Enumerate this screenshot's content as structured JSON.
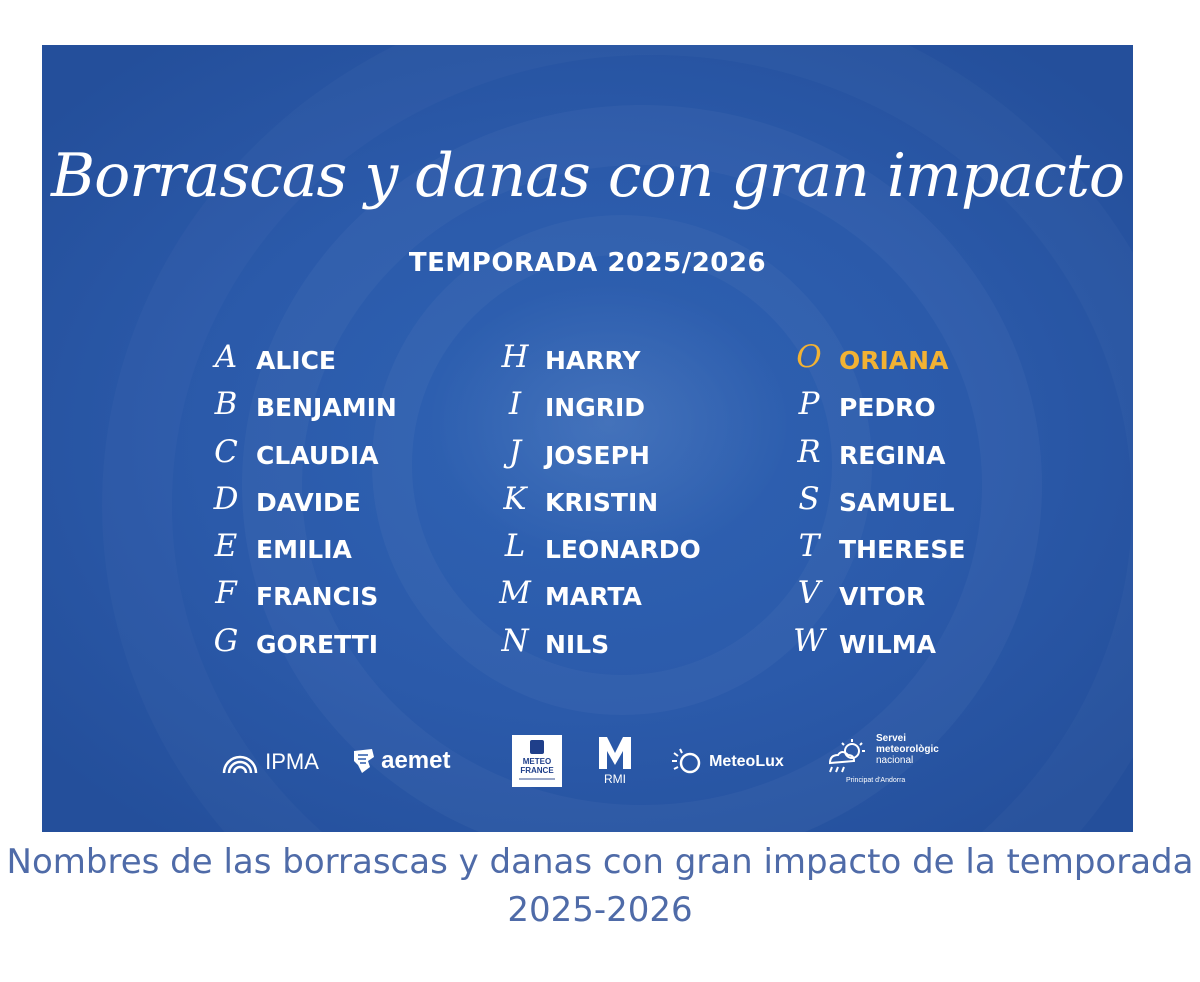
{
  "poster": {
    "title": "Borrascas y danas con gran impacto",
    "subtitle": "TEMPORADA 2025/2026",
    "columns": [
      [
        {
          "letter": "A",
          "name": "ALICE"
        },
        {
          "letter": "B",
          "name": "BENJAMIN"
        },
        {
          "letter": "C",
          "name": "CLAUDIA"
        },
        {
          "letter": "D",
          "name": "DAVIDE"
        },
        {
          "letter": "E",
          "name": "EMILIA"
        },
        {
          "letter": "F",
          "name": "FRANCIS"
        },
        {
          "letter": "G",
          "name": "GORETTI"
        }
      ],
      [
        {
          "letter": "H",
          "name": "HARRY"
        },
        {
          "letter": "I",
          "name": "INGRID"
        },
        {
          "letter": "J",
          "name": "JOSEPH"
        },
        {
          "letter": "K",
          "name": "KRISTIN"
        },
        {
          "letter": "L",
          "name": "LEONARDO"
        },
        {
          "letter": "M",
          "name": "MARTA"
        },
        {
          "letter": "N",
          "name": "NILS"
        }
      ],
      [
        {
          "letter": "O",
          "name": "ORIANA"
        },
        {
          "letter": "P",
          "name": "PEDRO"
        },
        {
          "letter": "R",
          "name": "REGINA"
        },
        {
          "letter": "S",
          "name": "SAMUEL"
        },
        {
          "letter": "T",
          "name": "THERESE"
        },
        {
          "letter": "V",
          "name": "VITOR"
        },
        {
          "letter": "W",
          "name": "WILMA"
        }
      ]
    ],
    "highlight_name": "ORIANA",
    "highlight_color": "#f2b233",
    "background_color": "#2b5aaa",
    "logos": {
      "ipma": "IPMA",
      "aemet": "aemet",
      "meteofrance_line1": "METEO",
      "meteofrance_line2": "FRANCE",
      "rmi": "RMI",
      "meteolux": "MeteoLux",
      "smn_line1": "Servei",
      "smn_line2": "meteorològic",
      "smn_line3": "nacional",
      "smn_line4": "Principat d'Andorra"
    }
  },
  "caption": "Nombres de las borrascas y danas con gran impacto de la temporada 2025-2026"
}
